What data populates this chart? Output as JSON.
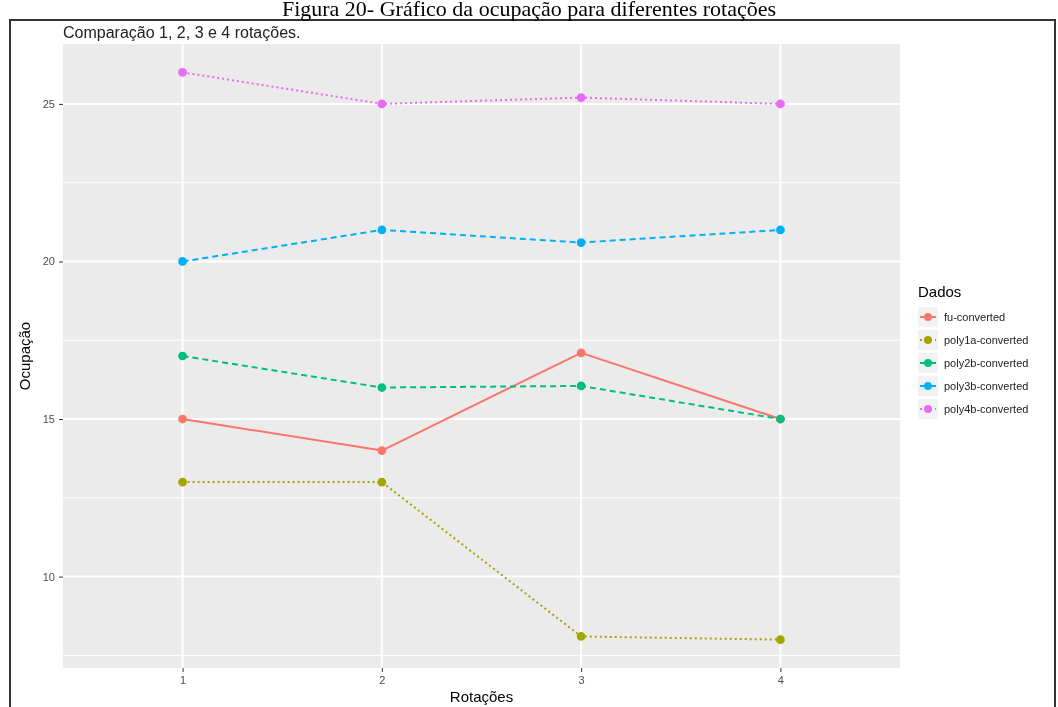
{
  "chart_data": {
    "type": "line",
    "title": "Figura 20- Gráfico da ocupação para diferentes rotações",
    "subtitle": "Comparação 1, 2, 3 e 4 rotações.",
    "xlabel": "Rotações",
    "ylabel": "Ocupação",
    "legend_title": "Dados",
    "legend": "right",
    "grid": true,
    "marker": "circle",
    "x": [
      1,
      2,
      3,
      4
    ],
    "xlim": [
      0.4,
      4.6
    ],
    "xticks": [
      1,
      2,
      3,
      4
    ],
    "ylim": [
      7.1,
      26.9
    ],
    "yticks": [
      {
        "value": 7.5,
        "label": null
      },
      10,
      {
        "value": 12.5,
        "label": null
      },
      15,
      {
        "value": 17.5,
        "label": null
      },
      20,
      {
        "value": 22.5,
        "label": null
      },
      25
    ],
    "series": [
      {
        "name": "fu-converted",
        "color": "#f8766d",
        "line_style": "solid",
        "values": [
          15,
          14,
          17.1,
          15
        ]
      },
      {
        "name": "poly1a-converted",
        "color": "#a3a500",
        "line_style": "dotted",
        "values": [
          13,
          13,
          8.1,
          8
        ]
      },
      {
        "name": "poly2b-converted",
        "color": "#00bf7d",
        "line_style": "dashed",
        "values": [
          17,
          16,
          16.05,
          15
        ]
      },
      {
        "name": "poly3b-converted",
        "color": "#00b0f6",
        "line_style": "dashed",
        "values": [
          20,
          21,
          20.6,
          21
        ]
      },
      {
        "name": "poly4b-converted",
        "color": "#e76bf3",
        "line_style": "dotted",
        "values": [
          26,
          25,
          25.2,
          25
        ]
      }
    ]
  }
}
